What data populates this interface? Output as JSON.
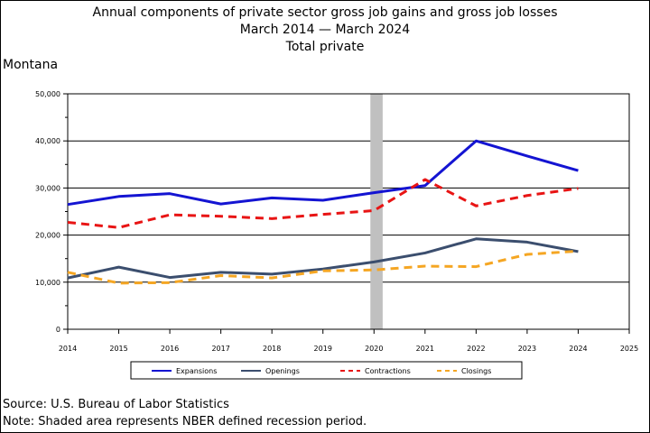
{
  "title": {
    "line1": "Annual components of private sector gross job gains and gross job losses",
    "line2": "March 2014 — March 2024",
    "line3": "Total private"
  },
  "state": "Montana",
  "source": "Source: U.S. Bureau of Labor Statistics",
  "note": "Note: Shaded area represents NBER defined recession period.",
  "chart_data": {
    "type": "line",
    "x": [
      2014,
      2015,
      2016,
      2017,
      2018,
      2019,
      2020,
      2021,
      2022,
      2023,
      2024
    ],
    "xticks": [
      "2014",
      "2015",
      "2016",
      "2017",
      "2018",
      "2019",
      "2020",
      "2021",
      "2022",
      "2023",
      "2024",
      "2025"
    ],
    "xlim": [
      2014,
      2025
    ],
    "ylim": [
      0,
      50000
    ],
    "yticks": [
      "0",
      "10,000",
      "20,000",
      "30,000",
      "40,000",
      "50,000"
    ],
    "recession": [
      2020.0,
      2020.17
    ],
    "grid": "horizontal",
    "legend_position": "bottom",
    "series": [
      {
        "name": "Expansions",
        "color": "#1414d2",
        "style": "solid",
        "width": 3,
        "values": [
          26500,
          28200,
          28800,
          26600,
          27900,
          27400,
          29000,
          30500,
          40000,
          36800,
          33700
        ]
      },
      {
        "name": "Openings",
        "color": "#3b4e6e",
        "style": "solid",
        "width": 3,
        "values": [
          10900,
          13200,
          11000,
          12100,
          11700,
          12800,
          14300,
          16200,
          19200,
          18500,
          16500
        ]
      },
      {
        "name": "Contractions",
        "color": "#e81414",
        "style": "dashed",
        "width": 3,
        "values": [
          22700,
          21600,
          24300,
          24000,
          23500,
          24400,
          25200,
          31800,
          26200,
          28400,
          29900
        ]
      },
      {
        "name": "Closings",
        "color": "#f5a623",
        "style": "dashed",
        "width": 3,
        "values": [
          12100,
          9800,
          9900,
          11400,
          10900,
          12400,
          12600,
          13400,
          13300,
          15900,
          16600
        ]
      }
    ]
  }
}
